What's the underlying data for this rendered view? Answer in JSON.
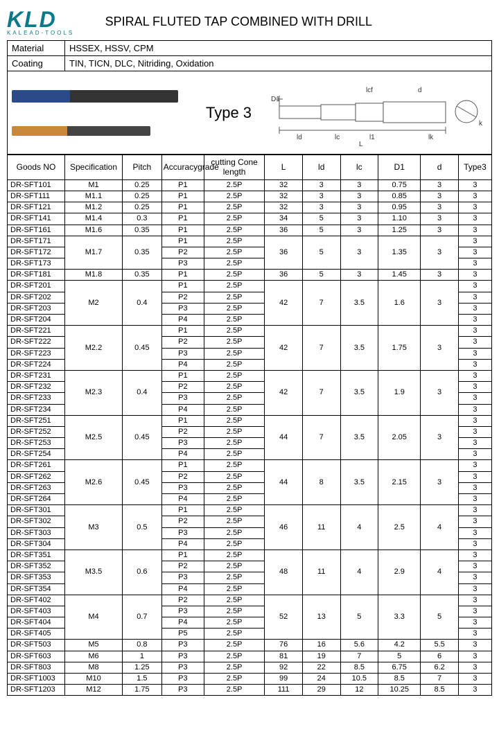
{
  "logo": {
    "text": "KLD",
    "sub": "KALEAD-TOOLS"
  },
  "title": "SPIRAL FLUTED TAP COMBINED WITH DRILL",
  "meta": {
    "material_label": "Material",
    "material_value": "HSSEX,  HSSV,  CPM",
    "coating_label": "Coating",
    "coating_value": "TIN, TICN, DLC, Nitriding, Oxidation"
  },
  "type_label": "Type 3",
  "diagram_labels": {
    "D1": "D1",
    "lcf": "lcf",
    "d": "d",
    "ld": "ld",
    "lc": "lc",
    "l1": "l1",
    "lk": "lk",
    "k": "k",
    "L": "L"
  },
  "columns": [
    "Goods NO",
    "Specification",
    "Pitch",
    "Accuracygrade",
    "cutting Cone length",
    "L",
    "ld",
    "lc",
    "D1",
    "d",
    "Type3"
  ],
  "rows": [
    {
      "g": "DR-SFT101",
      "spec": "M1",
      "pitch": "0.25",
      "acc": [
        "P1"
      ],
      "cone": [
        "2.5P"
      ],
      "L": "32",
      "ld": "3",
      "lc": "3",
      "D1": "0.75",
      "d": "3",
      "t": [
        "3"
      ]
    },
    {
      "g": "DR-SFT111",
      "spec": "M1.1",
      "pitch": "0.25",
      "acc": [
        "P1"
      ],
      "cone": [
        "2.5P"
      ],
      "L": "32",
      "ld": "3",
      "lc": "3",
      "D1": "0.85",
      "d": "3",
      "t": [
        "3"
      ]
    },
    {
      "g": "DR-SFT121",
      "spec": "M1.2",
      "pitch": "0.25",
      "acc": [
        "P1"
      ],
      "cone": [
        "2.5P"
      ],
      "L": "32",
      "ld": "3",
      "lc": "3",
      "D1": "0.95",
      "d": "3",
      "t": [
        "3"
      ]
    },
    {
      "g": "DR-SFT141",
      "spec": "M1.4",
      "pitch": "0.3",
      "acc": [
        "P1"
      ],
      "cone": [
        "2.5P"
      ],
      "L": "34",
      "ld": "5",
      "lc": "3",
      "D1": "1.10",
      "d": "3",
      "t": [
        "3"
      ]
    },
    {
      "g": "DR-SFT161",
      "spec": "M1.6",
      "pitch": "0.35",
      "acc": [
        "P1"
      ],
      "cone": [
        "2.5P"
      ],
      "L": "36",
      "ld": "5",
      "lc": "3",
      "D1": "1.25",
      "d": "3",
      "t": [
        "3"
      ]
    },
    {
      "g": [
        "DR-SFT171",
        "DR-SFT172",
        "DR-SFT173"
      ],
      "spec": "M1.7",
      "pitch": "0.35",
      "acc": [
        "P1",
        "P2",
        "P3"
      ],
      "cone": [
        "2.5P",
        "2.5P",
        "2.5P"
      ],
      "L": "36",
      "ld": "5",
      "lc": "3",
      "D1": "1.35",
      "d": "3",
      "t": [
        "3",
        "3",
        "3"
      ]
    },
    {
      "g": "DR-SFT181",
      "spec": "M1.8",
      "pitch": "0.35",
      "acc": [
        "P1"
      ],
      "cone": [
        "2.5P"
      ],
      "L": "36",
      "ld": "5",
      "lc": "3",
      "D1": "1.45",
      "d": "3",
      "t": [
        "3"
      ]
    },
    {
      "g": [
        "DR-SFT201",
        "DR-SFT202",
        "DR-SFT203",
        "DR-SFT204"
      ],
      "spec": "M2",
      "pitch": "0.4",
      "acc": [
        "P1",
        "P2",
        "P3",
        "P4"
      ],
      "cone": [
        "2.5P",
        "2.5P",
        "2.5P",
        "2.5P"
      ],
      "L": "42",
      "ld": "7",
      "lc": "3.5",
      "D1": "1.6",
      "d": "3",
      "t": [
        "3",
        "3",
        "3",
        "3"
      ]
    },
    {
      "g": [
        "DR-SFT221",
        "DR-SFT222",
        "DR-SFT223",
        "DR-SFT224"
      ],
      "spec": "M2.2",
      "pitch": "0.45",
      "acc": [
        "P1",
        "P2",
        "P3",
        "P4"
      ],
      "cone": [
        "2.5P",
        "2.5P",
        "2.5P",
        "2.5P"
      ],
      "L": "42",
      "ld": "7",
      "lc": "3.5",
      "D1": "1.75",
      "d": "3",
      "t": [
        "3",
        "3",
        "3",
        "3"
      ]
    },
    {
      "g": [
        "DR-SFT231",
        "DR-SFT232",
        "DR-SFT233",
        "DR-SFT234"
      ],
      "spec": "M2.3",
      "pitch": "0.4",
      "acc": [
        "P1",
        "P2",
        "P3",
        "P4"
      ],
      "cone": [
        "2.5P",
        "2.5P",
        "2.5P",
        "2.5P"
      ],
      "L": "42",
      "ld": "7",
      "lc": "3.5",
      "D1": "1.9",
      "d": "3",
      "t": [
        "3",
        "3",
        "3",
        "3"
      ]
    },
    {
      "g": [
        "DR-SFT251",
        "DR-SFT252",
        "DR-SFT253",
        "DR-SFT254"
      ],
      "spec": "M2.5",
      "pitch": "0.45",
      "acc": [
        "P1",
        "P2",
        "P3",
        "P4"
      ],
      "cone": [
        "2.5P",
        "2.5P",
        "2.5P",
        "2.5P"
      ],
      "L": "44",
      "ld": "7",
      "lc": "3.5",
      "D1": "2.05",
      "d": "3",
      "t": [
        "3",
        "3",
        "3",
        "3"
      ]
    },
    {
      "g": [
        "DR-SFT261",
        "DR-SFT262",
        "DR-SFT263",
        "DR-SFT264"
      ],
      "spec": "M2.6",
      "pitch": "0.45",
      "acc": [
        "P1",
        "P2",
        "P3",
        "P4"
      ],
      "cone": [
        "2.5P",
        "2.5P",
        "2.5P",
        "2.5P"
      ],
      "L": "44",
      "ld": "8",
      "lc": "3.5",
      "D1": "2.15",
      "d": "3",
      "t": [
        "3",
        "3",
        "3",
        "3"
      ]
    },
    {
      "g": [
        "DR-SFT301",
        "DR-SFT302",
        "DR-SFT303",
        "DR-SFT304"
      ],
      "spec": "M3",
      "pitch": "0.5",
      "acc": [
        "P1",
        "P2",
        "P3",
        "P4"
      ],
      "cone": [
        "2.5P",
        "2.5P",
        "2.5P",
        "2.5P"
      ],
      "L": "46",
      "ld": "11",
      "lc": "4",
      "D1": "2.5",
      "d": "4",
      "t": [
        "3",
        "3",
        "3",
        "3"
      ]
    },
    {
      "g": [
        "DR-SFT351",
        "DR-SFT352",
        "DR-SFT353",
        "DR-SFT354"
      ],
      "spec": "M3.5",
      "pitch": "0.6",
      "acc": [
        "P1",
        "P2",
        "P3",
        "P4"
      ],
      "cone": [
        "2.5P",
        "2.5P",
        "2.5P",
        "2.5P"
      ],
      "L": "48",
      "ld": "11",
      "lc": "4",
      "D1": "2.9",
      "d": "4",
      "t": [
        "3",
        "3",
        "3",
        "3"
      ]
    },
    {
      "g": [
        "DR-SFT402",
        "DR-SFT403",
        "DR-SFT404",
        "DR-SFT405"
      ],
      "spec": "M4",
      "pitch": "0.7",
      "acc": [
        "P2",
        "P3",
        "P4",
        "P5"
      ],
      "cone": [
        "2.5P",
        "2.5P",
        "2.5P",
        "2.5P"
      ],
      "L": "52",
      "ld": "13",
      "lc": "5",
      "D1": "3.3",
      "d": "5",
      "t": [
        "3",
        "3",
        "3",
        "3"
      ]
    },
    {
      "g": "DR-SFT503",
      "spec": "M5",
      "pitch": "0.8",
      "acc": [
        "P3"
      ],
      "cone": [
        "2.5P"
      ],
      "L": "76",
      "ld": "16",
      "lc": "5.6",
      "D1": "4.2",
      "d": "5.5",
      "t": [
        "3"
      ]
    },
    {
      "g": "DR-SFT603",
      "spec": "M6",
      "pitch": "1",
      "acc": [
        "P3"
      ],
      "cone": [
        "2.5P"
      ],
      "L": "81",
      "ld": "19",
      "lc": "7",
      "D1": "5",
      "d": "6",
      "t": [
        "3"
      ]
    },
    {
      "g": "DR-SFT803",
      "spec": "M8",
      "pitch": "1.25",
      "acc": [
        "P3"
      ],
      "cone": [
        "2.5P"
      ],
      "L": "92",
      "ld": "22",
      "lc": "8.5",
      "D1": "6.75",
      "d": "6.2",
      "t": [
        "3"
      ]
    },
    {
      "g": "DR-SFT1003",
      "spec": "M10",
      "pitch": "1.5",
      "acc": [
        "P3"
      ],
      "cone": [
        "2.5P"
      ],
      "L": "99",
      "ld": "24",
      "lc": "10.5",
      "D1": "8.5",
      "d": "7",
      "t": [
        "3"
      ]
    },
    {
      "g": "DR-SFT1203",
      "spec": "M12",
      "pitch": "1.75",
      "acc": [
        "P3"
      ],
      "cone": [
        "2.5P"
      ],
      "L": "111",
      "ld": "29",
      "lc": "12",
      "D1": "10.25",
      "d": "8.5",
      "t": [
        "3"
      ]
    }
  ]
}
